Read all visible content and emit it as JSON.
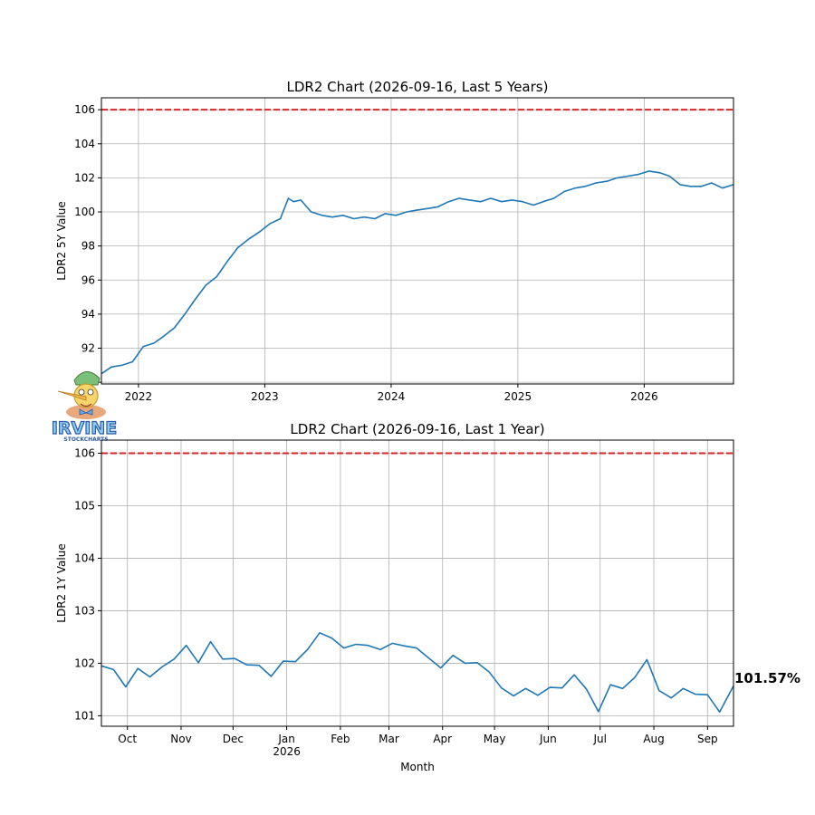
{
  "chart_data": [
    {
      "type": "line",
      "title": "LDR2 Chart (2026-09-16, Last 5 Years)",
      "xlabel": "",
      "ylabel": "LDR2 5Y Value",
      "ylim": [
        89.9,
        106.7
      ],
      "xlim": [
        "2021-09-16",
        "2026-09-16"
      ],
      "grid": true,
      "yticks": [
        "90",
        "92",
        "94",
        "96",
        "98",
        "100",
        "102",
        "104",
        "106"
      ],
      "xticks": [
        "2022",
        "2023",
        "2024",
        "2025",
        "2026"
      ],
      "reference_line": {
        "y": 106.0,
        "style": "dashed",
        "color": "#d62728"
      },
      "series": [
        {
          "color": "#1f77b4",
          "x": [
            "2021-09-16",
            "2021-10-15",
            "2021-11-15",
            "2021-12-15",
            "2022-01-15",
            "2022-02-15",
            "2022-03-15",
            "2022-04-15",
            "2022-05-15",
            "2022-06-15",
            "2022-07-15",
            "2022-08-15",
            "2022-09-15",
            "2022-10-15",
            "2022-11-15",
            "2022-12-15",
            "2023-01-15",
            "2023-02-15",
            "2023-03-10",
            "2023-03-25",
            "2023-04-15",
            "2023-05-15",
            "2023-06-15",
            "2023-07-15",
            "2023-08-15",
            "2023-09-15",
            "2023-10-15",
            "2023-11-15",
            "2023-12-15",
            "2024-01-15",
            "2024-02-15",
            "2024-03-15",
            "2024-04-15",
            "2024-05-15",
            "2024-06-15",
            "2024-07-15",
            "2024-08-15",
            "2024-09-15",
            "2024-10-15",
            "2024-11-15",
            "2024-12-15",
            "2025-01-15",
            "2025-02-15",
            "2025-03-15",
            "2025-04-15",
            "2025-05-15",
            "2025-06-15",
            "2025-07-15",
            "2025-08-15",
            "2025-09-15",
            "2025-10-15",
            "2025-11-15",
            "2025-12-15",
            "2026-01-15",
            "2026-02-15",
            "2026-03-15",
            "2026-04-15",
            "2026-05-15",
            "2026-06-15",
            "2026-07-15",
            "2026-08-15",
            "2026-09-16"
          ],
          "values": [
            90.5,
            90.9,
            91.0,
            91.2,
            92.1,
            92.3,
            92.7,
            93.2,
            94.0,
            94.9,
            95.7,
            96.2,
            97.1,
            97.9,
            98.4,
            98.8,
            99.3,
            99.6,
            100.8,
            100.6,
            100.7,
            100.0,
            99.8,
            99.7,
            99.8,
            99.6,
            99.7,
            99.6,
            99.9,
            99.8,
            100.0,
            100.1,
            100.2,
            100.3,
            100.6,
            100.8,
            100.7,
            100.6,
            100.8,
            100.6,
            100.7,
            100.6,
            100.4,
            100.6,
            100.8,
            101.2,
            101.4,
            101.5,
            101.7,
            101.8,
            102.0,
            102.1,
            102.2,
            102.4,
            102.3,
            102.1,
            101.6,
            101.5,
            101.5,
            101.7,
            101.4,
            101.6
          ]
        }
      ]
    },
    {
      "type": "line",
      "title": "LDR2 Chart (2026-09-16, Last 1 Year)",
      "xlabel": "Month",
      "ylabel": "LDR2 1Y Value",
      "ylim": [
        100.8,
        106.25
      ],
      "xlim": [
        "2025-09-16",
        "2026-09-16"
      ],
      "grid": true,
      "yticks": [
        "101",
        "102",
        "103",
        "104",
        "105",
        "106"
      ],
      "xticks": [
        "Oct",
        "Nov",
        "Dec",
        "Jan\n2026",
        "Feb",
        "Mar",
        "Apr",
        "May",
        "Jun",
        "Jul",
        "Aug",
        "Sep"
      ],
      "reference_line": {
        "y": 106.0,
        "style": "dashed",
        "color": "#d62728"
      },
      "end_label": "101.57%",
      "series": [
        {
          "color": "#1f77b4",
          "x": [
            "2025-09-16",
            "2025-09-23",
            "2025-09-30",
            "2025-10-07",
            "2025-10-14",
            "2025-10-21",
            "2025-10-28",
            "2025-11-04",
            "2025-11-11",
            "2025-11-18",
            "2025-11-25",
            "2025-12-02",
            "2025-12-09",
            "2025-12-16",
            "2025-12-23",
            "2025-12-30",
            "2026-01-06",
            "2026-01-13",
            "2026-01-20",
            "2026-01-27",
            "2026-02-03",
            "2026-02-10",
            "2026-02-17",
            "2026-02-24",
            "2026-03-03",
            "2026-03-10",
            "2026-03-17",
            "2026-03-24",
            "2026-03-31",
            "2026-04-07",
            "2026-04-14",
            "2026-04-21",
            "2026-04-28",
            "2026-05-05",
            "2026-05-12",
            "2026-05-19",
            "2026-05-26",
            "2026-06-02",
            "2026-06-09",
            "2026-06-16",
            "2026-06-23",
            "2026-06-30",
            "2026-07-07",
            "2026-07-14",
            "2026-07-21",
            "2026-07-28",
            "2026-08-04",
            "2026-08-11",
            "2026-08-18",
            "2026-08-25",
            "2026-09-01",
            "2026-09-08",
            "2026-09-16"
          ],
          "values": [
            101.95,
            101.88,
            101.55,
            101.9,
            101.74,
            101.93,
            102.08,
            102.34,
            102.01,
            102.41,
            102.08,
            102.09,
            101.97,
            101.96,
            101.75,
            102.04,
            102.03,
            102.26,
            102.58,
            102.48,
            102.29,
            102.36,
            102.34,
            102.26,
            102.38,
            102.33,
            102.29,
            102.1,
            101.91,
            102.15,
            102.0,
            102.01,
            101.83,
            101.53,
            101.38,
            101.52,
            101.39,
            101.54,
            101.53,
            101.78,
            101.51,
            101.08,
            101.59,
            101.52,
            101.73,
            102.07,
            101.48,
            101.34,
            101.52,
            101.41,
            101.4,
            101.07,
            101.57
          ]
        }
      ]
    }
  ],
  "logo": {
    "wordmark": "IRVINE",
    "subtitle": "STOCKCHARTS"
  }
}
